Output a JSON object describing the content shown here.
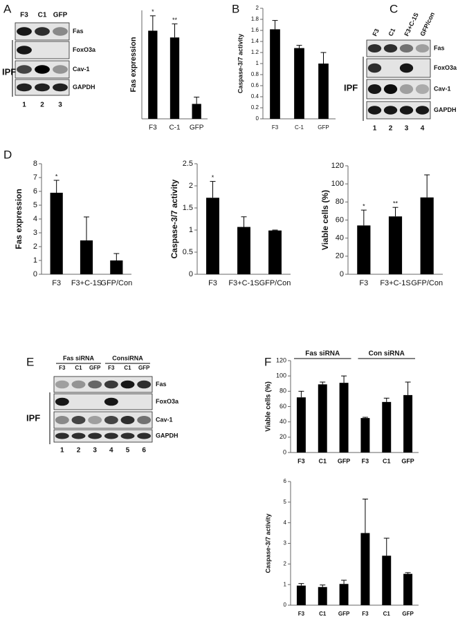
{
  "panels": [
    "A",
    "B",
    "C",
    "D",
    "E",
    "F"
  ],
  "blots": [
    {
      "lanes": [
        "F3",
        "C1",
        "GFP"
      ],
      "rows": [
        "Fas",
        "FoxO3a",
        "Cav-1",
        "GAPDH"
      ],
      "numbers": [
        "1",
        "2",
        "3"
      ],
      "group": "IPF"
    },
    {
      "lanes": [
        "F3",
        "C1",
        "F3+C-1S",
        "GFP/con"
      ],
      "rows": [
        "Fas",
        "FoxO3a",
        "Cav-1",
        "GAPDH"
      ],
      "numbers": [
        "1",
        "2",
        "3",
        "4"
      ],
      "group": "IPF"
    },
    {
      "headers": [
        "Fas siRNA",
        "ConsiRNA"
      ],
      "lanes": [
        "F3",
        "C1",
        "GFP",
        "F3",
        "C1",
        "GFP"
      ],
      "rows": [
        "Fas",
        "FoxO3a",
        "Cav-1",
        "GAPDH"
      ],
      "numbers": [
        "1",
        "2",
        "3",
        "4",
        "5",
        "6"
      ],
      "group": "IPF"
    }
  ],
  "chart_data": [
    {
      "type": "bar",
      "ylabel": "Fas expression",
      "categories": [
        "F3",
        "C-1",
        "GFP"
      ],
      "values": [
        6.5,
        6.0,
        1.1
      ],
      "errors": [
        1.1,
        1.0,
        0.5
      ],
      "annotations": [
        "*",
        "**",
        null
      ],
      "ylim": [
        0,
        8
      ],
      "color": "#000000"
    },
    {
      "type": "bar",
      "ylabel": "Caspase-3/7 activity",
      "categories": [
        "F3",
        "C-1",
        "GFP"
      ],
      "values": [
        1.62,
        1.28,
        1.0
      ],
      "errors": [
        0.16,
        0.05,
        0.2
      ],
      "ylim": [
        0,
        2
      ],
      "yticks": [
        0,
        0.2,
        0.4,
        0.6,
        0.8,
        1,
        1.2,
        1.4,
        1.6,
        1.8,
        2
      ],
      "color": "#000000"
    },
    {
      "type": "bar",
      "ylabel": "Fas expression",
      "categories": [
        "F3",
        "F3+C-1S",
        "GFP/Con"
      ],
      "values": [
        5.9,
        2.45,
        1.0
      ],
      "errors": [
        0.9,
        1.7,
        0.5
      ],
      "annotations": [
        "*",
        null,
        null
      ],
      "ylim": [
        0,
        8
      ],
      "yticks": [
        0,
        1,
        2,
        3,
        4,
        5,
        6,
        7,
        8
      ],
      "color": "#000000"
    },
    {
      "type": "bar",
      "ylabel": "Caspase-3/7 activity",
      "categories": [
        "F3",
        "F3+C-1S",
        "GFP/Con"
      ],
      "values": [
        1.73,
        1.07,
        0.99
      ],
      "errors": [
        0.37,
        0.23,
        0.01
      ],
      "annotations": [
        "*",
        null,
        null
      ],
      "ylim": [
        0,
        2.5
      ],
      "yticks": [
        0,
        0.5,
        1,
        1.5,
        2,
        2.5
      ],
      "color": "#000000"
    },
    {
      "type": "bar",
      "ylabel": "Viable cells (%)",
      "categories": [
        "F3",
        "F3+C-1S",
        "GFP/Con"
      ],
      "values": [
        54,
        64,
        85
      ],
      "errors": [
        17,
        10,
        25
      ],
      "annotations": [
        "*",
        "**",
        null
      ],
      "ylim": [
        0,
        120
      ],
      "yticks": [
        0,
        20,
        40,
        60,
        80,
        100,
        120
      ],
      "color": "#000000"
    },
    {
      "type": "bar",
      "ylabel": "Viable cells (%)",
      "group_labels": [
        "Fas siRNA",
        "Con siRNA"
      ],
      "categories": [
        "F3",
        "C1",
        "GFP",
        "F3",
        "C1",
        "GFP"
      ],
      "values": [
        72,
        89,
        91,
        45,
        66,
        75
      ],
      "errors": [
        8,
        3,
        9,
        1,
        5,
        17
      ],
      "ylim": [
        0,
        120
      ],
      "yticks": [
        0,
        20,
        40,
        60,
        80,
        100,
        120
      ],
      "color": "#000000"
    },
    {
      "type": "bar",
      "ylabel": "Caspase-3/7 activity",
      "categories": [
        "F3",
        "C1",
        "GFP",
        "F3",
        "C1",
        "GFP"
      ],
      "values": [
        0.95,
        0.88,
        1.03,
        3.5,
        2.4,
        1.52
      ],
      "errors": [
        0.1,
        0.1,
        0.18,
        1.65,
        0.85,
        0.06
      ],
      "ylim": [
        0,
        6
      ],
      "yticks": [
        0,
        1,
        2,
        3,
        4,
        5,
        6
      ],
      "color": "#000000"
    }
  ]
}
